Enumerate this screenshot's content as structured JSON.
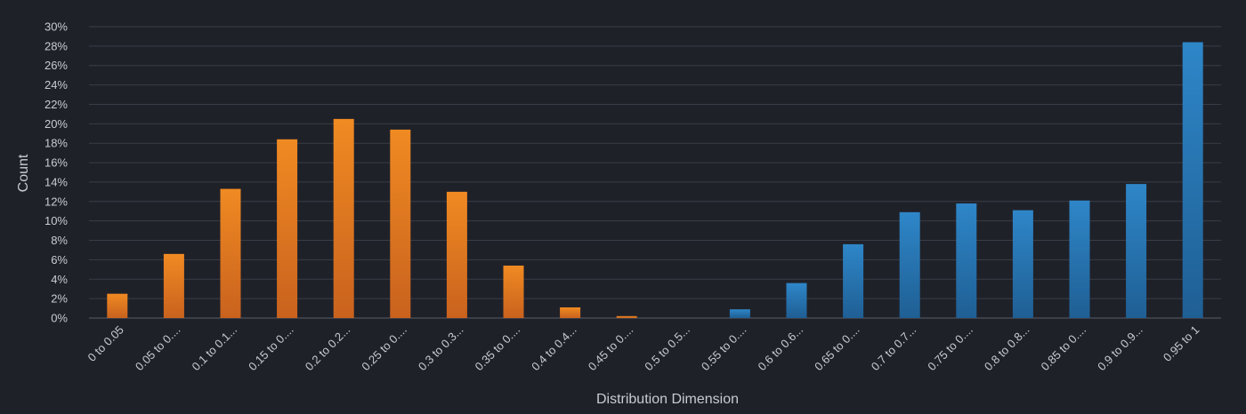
{
  "chart_data": {
    "type": "bar",
    "title": "",
    "xlabel": "Distribution Dimension",
    "ylabel": "Count",
    "ylim": [
      0,
      30
    ],
    "y_tick_step": 2,
    "y_tick_suffix": "%",
    "grid": true,
    "legend": "none",
    "categories": [
      "0 to 0.05",
      "0.05 to 0....",
      "0.1 to 0.1...",
      "0.15 to 0....",
      "0.2 to 0.2...",
      "0.25 to 0....",
      "0.3 to 0.3...",
      "0.35 to 0....",
      "0.4 to 0.4...",
      "0.45 to 0....",
      "0.5 to 0.5...",
      "0.55 to 0....",
      "0.6 to 0.6...",
      "0.65 to 0....",
      "0.7 to 0.7...",
      "0.75 to 0....",
      "0.8 to 0.8...",
      "0.85 to 0....",
      "0.9 to 0.9...",
      "0.95 to 1"
    ],
    "values": [
      2.5,
      6.6,
      13.3,
      18.4,
      20.5,
      19.4,
      13.0,
      5.4,
      1.1,
      0.2,
      0,
      0.9,
      3.6,
      7.6,
      10.9,
      11.8,
      11.1,
      12.1,
      13.8,
      28.4
    ],
    "bar_colors": [
      "#e8821f",
      "#e8821f",
      "#e8821f",
      "#e8821f",
      "#e8821f",
      "#e8821f",
      "#e8821f",
      "#e8821f",
      "#e8821f",
      "#e8821f",
      "#2a7fc0",
      "#2a7fc0",
      "#2a7fc0",
      "#2a7fc0",
      "#2a7fc0",
      "#2a7fc0",
      "#2a7fc0",
      "#2a7fc0",
      "#2a7fc0",
      "#2a7fc0"
    ]
  }
}
